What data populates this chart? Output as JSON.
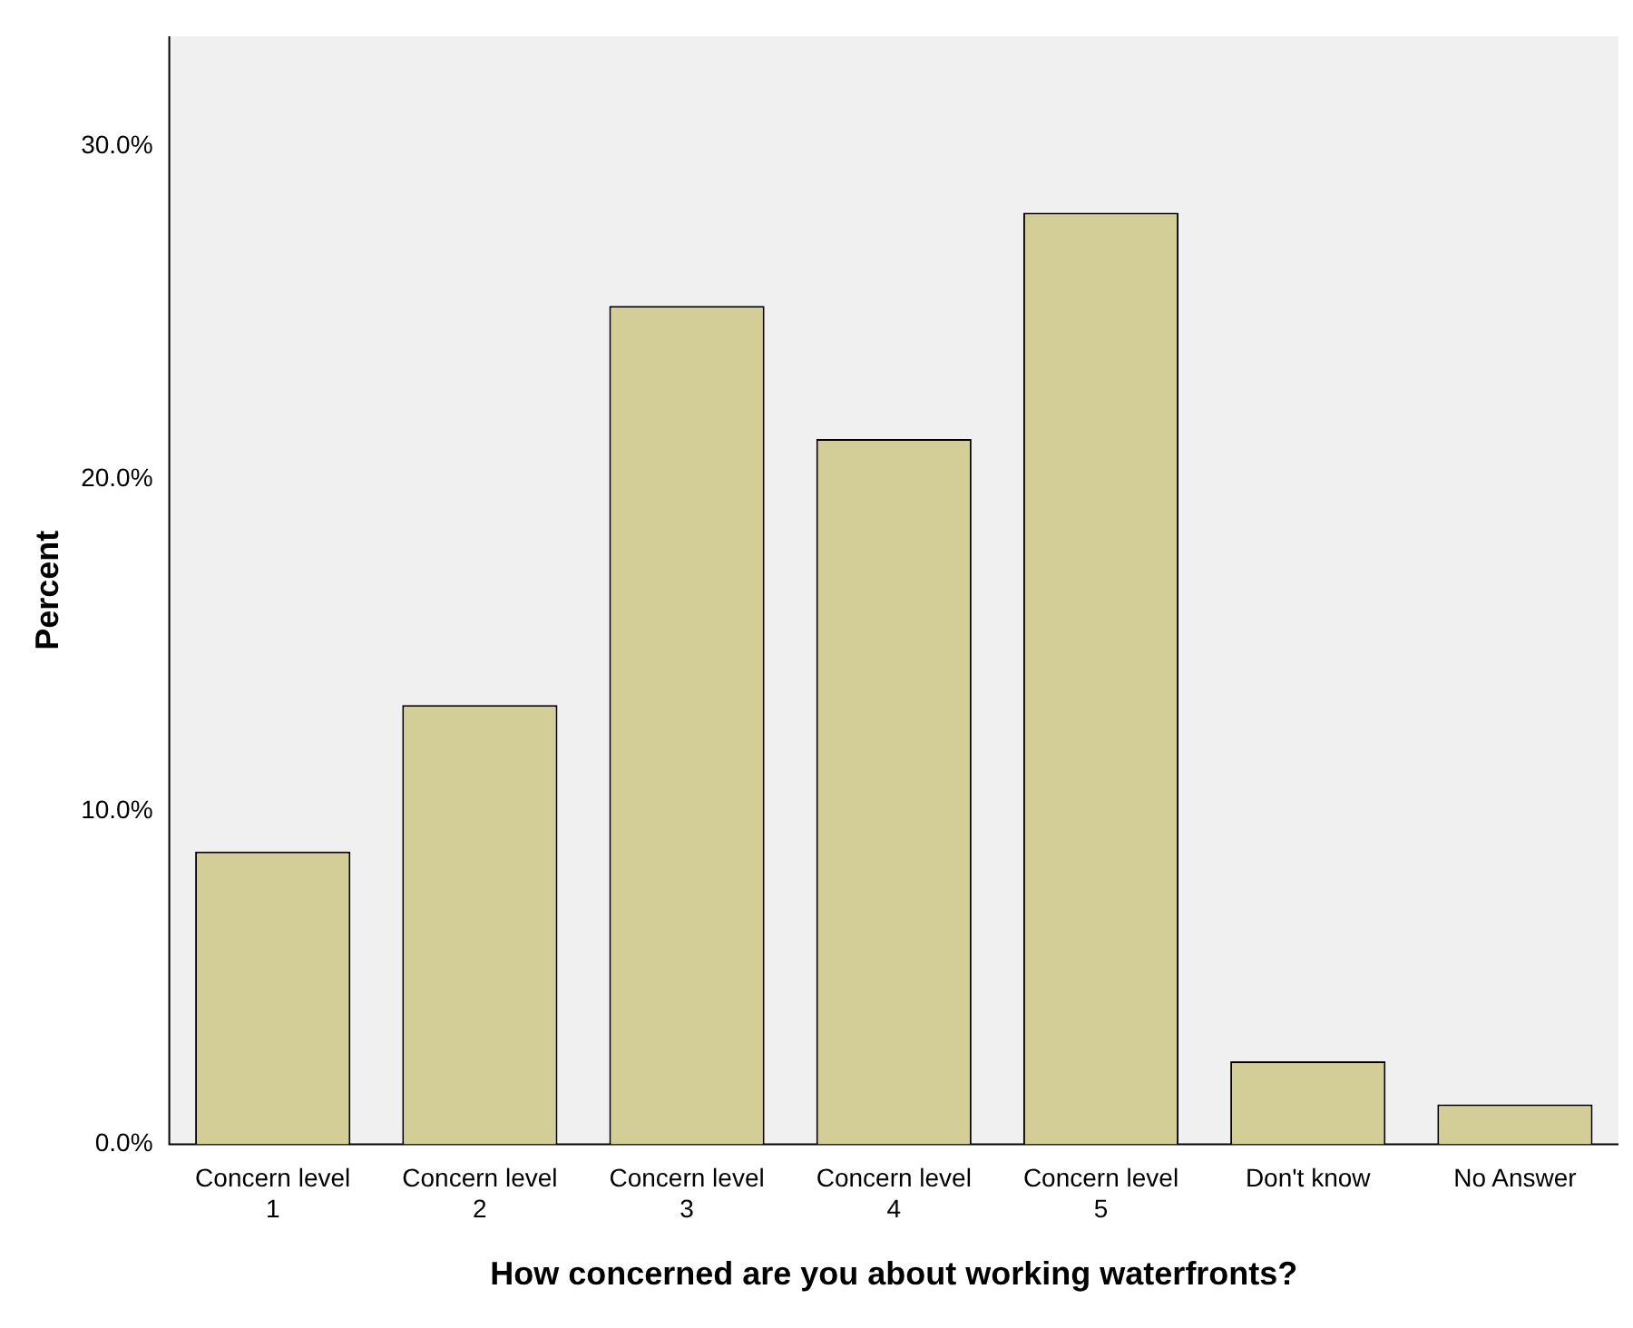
{
  "chart_data": {
    "type": "bar",
    "xlabel": "How concerned are you about working waterfronts?",
    "ylabel": "Percent",
    "categories": [
      "Concern level 1",
      "Concern level 2",
      "Concern level 3",
      "Concern level 4",
      "Concern level 5",
      "Don't know",
      "No Answer"
    ],
    "values": [
      8.8,
      13.2,
      25.2,
      21.2,
      28.0,
      2.5,
      1.2
    ],
    "color": "#d3ce97",
    "ylim": [
      0,
      33.3
    ],
    "yticks": [
      {
        "value": 0,
        "label": "0.0%"
      },
      {
        "value": 10,
        "label": "10.0%"
      },
      {
        "value": 20,
        "label": "20.0%"
      },
      {
        "value": 30,
        "label": "30.0%"
      }
    ],
    "grid": false,
    "legend": false
  }
}
